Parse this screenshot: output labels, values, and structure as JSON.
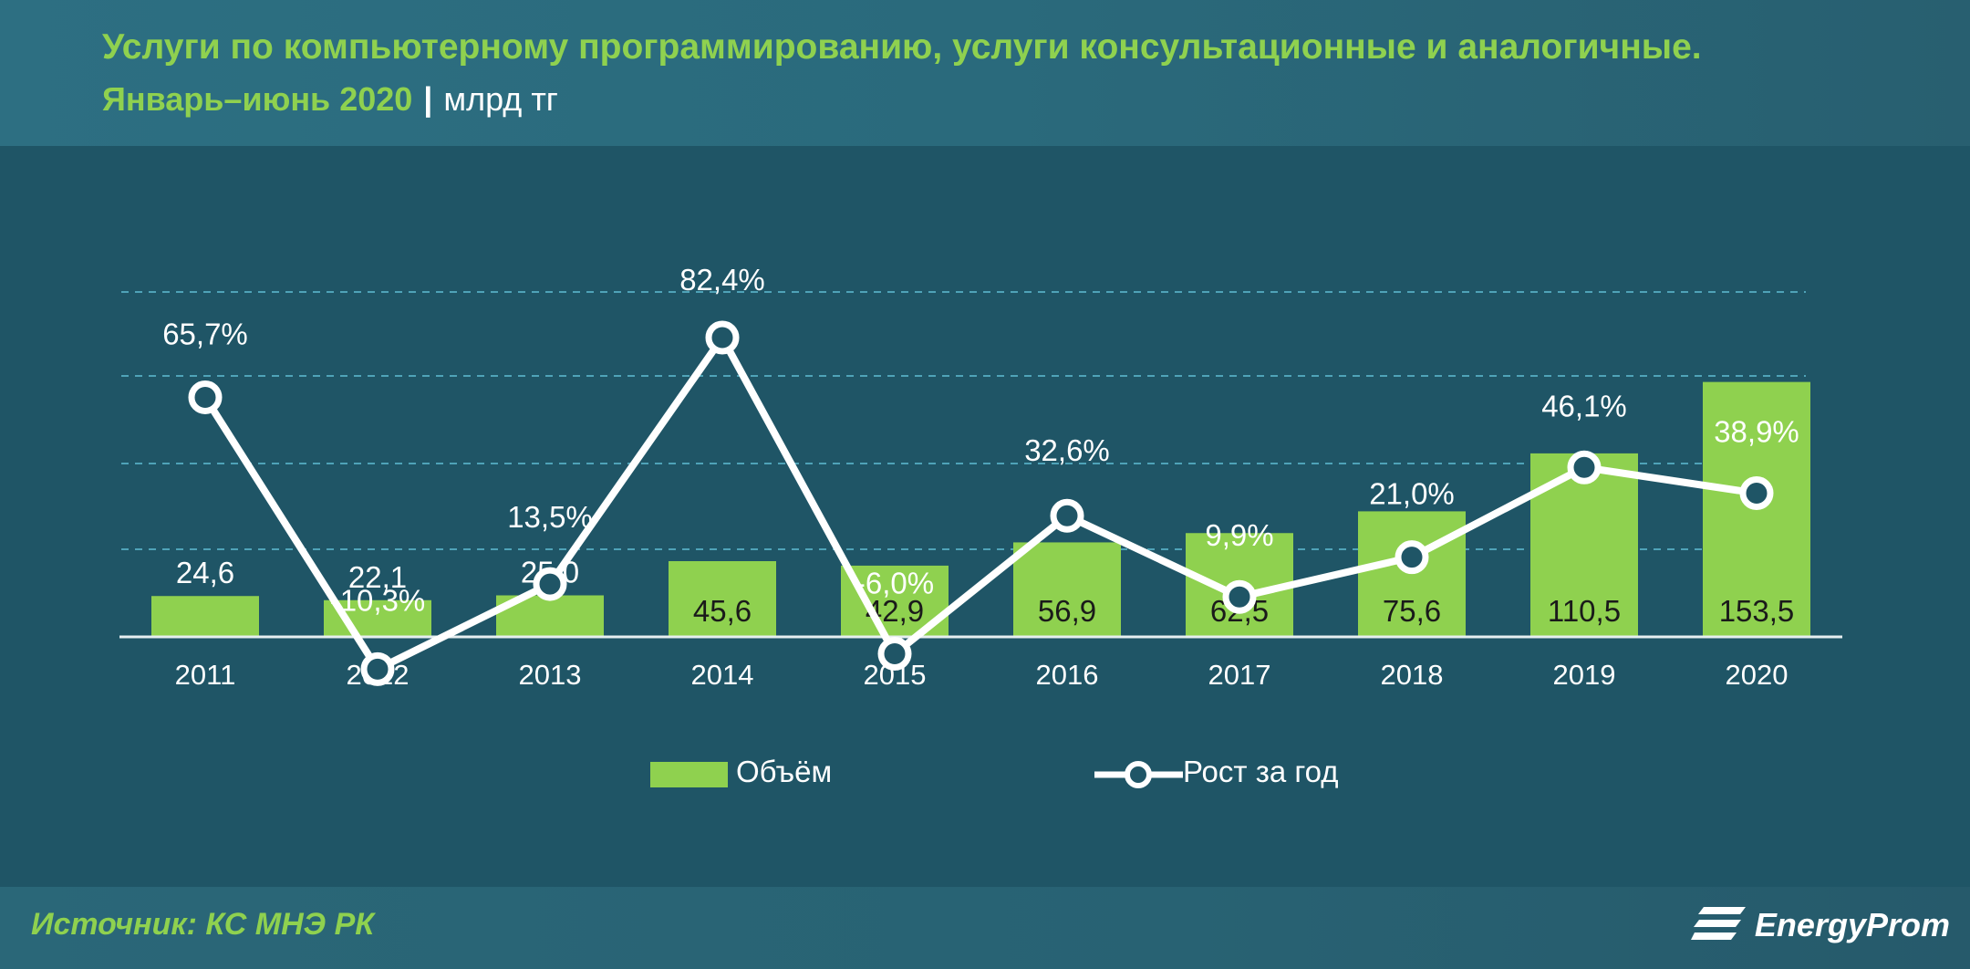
{
  "header": {
    "title": "Услуги по  компьютерному программированию, услуги консультационные и аналогичные.",
    "period": "Январь–июнь 2020",
    "separator": "|",
    "unit": "млрд тг"
  },
  "chart_data": {
    "type": "bar",
    "categories": [
      "2011",
      "2012",
      "2013",
      "2014",
      "2015",
      "2016",
      "2017",
      "2018",
      "2019",
      "2020"
    ],
    "series": [
      {
        "name": "Объём",
        "type": "bar",
        "values": [
          24.6,
          22.1,
          25.0,
          45.6,
          42.9,
          56.9,
          62.5,
          75.6,
          110.5,
          153.5
        ],
        "labels": [
          "24,6",
          "22,1",
          "25,0",
          "45,6",
          "42,9",
          "56,9",
          "62,5",
          "75,6",
          "110,5",
          "153,5"
        ],
        "color": "#8fd14f"
      },
      {
        "name": "Рост за год",
        "type": "line",
        "values": [
          65.7,
          -10.3,
          13.5,
          82.4,
          -6.0,
          32.6,
          9.9,
          21.0,
          46.1,
          38.9
        ],
        "labels": [
          "65,7%",
          "-10,3%",
          "13,5%",
          "82,4%",
          "-6,0%",
          "32,6%",
          "9,9%",
          "21,0%",
          "46,1%",
          "38,9%"
        ],
        "color": "#ffffff"
      }
    ],
    "legend_position": "bottom-center",
    "grid": true,
    "colors": {
      "background": "#1f5566",
      "bar": "#8fd14f",
      "line": "#ffffff",
      "grid": "#4fa3b8",
      "axis": "#e6eef0",
      "text": "#ffffff",
      "inside_label": "#1a1a1a"
    }
  },
  "footer": {
    "source": "Источник: КС МНЭ РК",
    "logo_text": "EnergyProm",
    "logo_icon": "energyprom-logo-icon"
  }
}
